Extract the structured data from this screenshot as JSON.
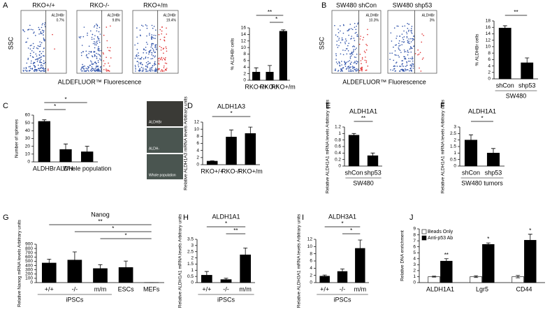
{
  "figure": {
    "panel_letters": [
      "A",
      "B",
      "C",
      "D",
      "E",
      "F",
      "G",
      "H",
      "I",
      "J"
    ],
    "flow_groups": [
      {
        "ylabel": "SSC",
        "xlabel": "ALDEFLUOR™ Fluorescence",
        "plots": [
          {
            "title": "RKO+/+",
            "gate": "ALDHBr",
            "percent": "0.7%"
          },
          {
            "title": "RKO-/-",
            "gate": "ALDHBr",
            "percent": "9.8%"
          },
          {
            "title": "RKO+/m",
            "gate": "ALDHBr",
            "percent": "19.4%"
          }
        ]
      },
      {
        "ylabel": "SSC",
        "xlabel": "ALDEFLUOR™ Fluorescence",
        "plots": [
          {
            "title": "SW480 shCon",
            "gate": "ALDHBr",
            "percent": "10.3%"
          },
          {
            "title": "SW480 shp53",
            "gate": "ALDHBr",
            "percent": "3%"
          }
        ]
      }
    ],
    "photos": [
      "ALDHBr",
      "ALDH-",
      "Whole population"
    ]
  },
  "chart_data": [
    {
      "type": "bar",
      "ylabel": "% ALDHBr cells",
      "categories": [
        "RKO+/+",
        "RKO-/-",
        "RKO+/m"
      ],
      "values": [
        2.5,
        2.5,
        15
      ],
      "errors": [
        1.3,
        2,
        0.4
      ],
      "color": "#000000",
      "ylim": [
        0,
        16
      ],
      "yticks": [
        0,
        2,
        4,
        6,
        8,
        10,
        12,
        14,
        16
      ],
      "brackets": [
        {
          "label": "**",
          "span": [
            0,
            2
          ]
        },
        {
          "label": "*",
          "span": [
            1,
            2
          ]
        }
      ]
    },
    {
      "type": "bar",
      "ylabel": "% ALDHBr cells",
      "categories": [
        "shCon",
        "shp53"
      ],
      "values": [
        15.8,
        5
      ],
      "errors": [
        0.7,
        1.5
      ],
      "color": "#000000",
      "ylim": [
        0,
        18
      ],
      "yticks": [
        0,
        2,
        4,
        6,
        8,
        10,
        12,
        14,
        16,
        18
      ],
      "brackets": [
        {
          "label": "**",
          "span": [
            0,
            1
          ]
        }
      ],
      "group": {
        "label": "SW480",
        "span": [
          0,
          1
        ]
      }
    },
    {
      "type": "bar",
      "ylabel": "Number of spheres",
      "categories": [
        "ALDHBr",
        "ALDH-",
        "Whole population"
      ],
      "values": [
        52,
        16,
        13
      ],
      "errors": [
        2,
        7,
        7
      ],
      "color": "#000000",
      "ylim": [
        0,
        60
      ],
      "yticks": [
        0,
        10,
        20,
        30,
        40,
        50,
        60
      ],
      "brackets": [
        {
          "label": "*",
          "span": [
            0,
            2
          ]
        },
        {
          "label": "*",
          "span": [
            0,
            1
          ]
        }
      ]
    },
    {
      "type": "bar",
      "title": "ALDH1A3",
      "ylabel": "Relative ALDH1A3 mRNA levels Arbitrary units",
      "categories": [
        "RKO+/+",
        "RKO-/-",
        "RKO+/m"
      ],
      "values": [
        1,
        7.8,
        8.8
      ],
      "errors": [
        0.1,
        2,
        1.8
      ],
      "color": "#000000",
      "ylim": [
        0,
        12
      ],
      "yticks": [
        0,
        2,
        4,
        6,
        8,
        10,
        12
      ],
      "brackets": [
        {
          "label": "*",
          "span": [
            0,
            2
          ]
        }
      ]
    },
    {
      "type": "bar",
      "title": "ALDH1A1",
      "ylabel": "Relative ALDH1A1 mRNA levels Arbitrary units",
      "categories": [
        "shCon",
        "shp53"
      ],
      "values": [
        0.95,
        0.32
      ],
      "errors": [
        0.05,
        0.08
      ],
      "color": "#000000",
      "ylim": [
        0,
        1.2
      ],
      "yticks": [
        0,
        0.2,
        0.4,
        0.6,
        0.8,
        1,
        1.2
      ],
      "brackets": [
        {
          "label": "**",
          "span": [
            0,
            1
          ]
        }
      ],
      "group": {
        "label": "SW480",
        "span": [
          0,
          1
        ]
      }
    },
    {
      "type": "bar",
      "title": "ALDH1A1",
      "ylabel": "Relative ALDH1A1 mRNA levels Arbitrary units",
      "categories": [
        "shCon",
        "shp53"
      ],
      "values": [
        2,
        1
      ],
      "errors": [
        0.4,
        0.35
      ],
      "color": "#000000",
      "ylim": [
        0,
        3
      ],
      "yticks": [
        0,
        0.5,
        1,
        1.5,
        2,
        2.5,
        3
      ],
      "brackets": [
        {
          "label": "*",
          "span": [
            0,
            1
          ]
        }
      ],
      "group": {
        "label": "SW480 tumors",
        "span": [
          0,
          1
        ]
      }
    },
    {
      "type": "bar",
      "title": "Nanog",
      "ylabel": "Relative Nanog mRNA levels Arbitrary units",
      "categories": [
        "+/+",
        "-/-",
        "m/m",
        "ESCs",
        "MEFs"
      ],
      "values": [
        460,
        530,
        330,
        355,
        2
      ],
      "errors": [
        90,
        190,
        90,
        150,
        0
      ],
      "color": "#000000",
      "ylim": [
        0,
        900
      ],
      "yticks": [
        0,
        100,
        200,
        300,
        400,
        500,
        600,
        700,
        800,
        900
      ],
      "brackets": [
        {
          "label": "**",
          "span": [
            0,
            4
          ]
        },
        {
          "label": "*",
          "span": [
            1,
            4
          ]
        },
        {
          "label": "*",
          "span": [
            2,
            4
          ]
        }
      ],
      "group": {
        "label": "iPSCs",
        "span": [
          0,
          2
        ]
      }
    },
    {
      "type": "bar",
      "title": "ALDH1A1",
      "ylabel": "Relative ALDH1A1 mRNA levels Arbitrary units",
      "categories": [
        "+/+",
        "-/-",
        "m/m"
      ],
      "values": [
        0.6,
        0.25,
        2.25
      ],
      "errors": [
        0.3,
        0.1,
        0.55
      ],
      "color": "#000000",
      "ylim": [
        0,
        3.5
      ],
      "yticks": [
        0,
        0.5,
        1,
        1.5,
        2,
        2.5,
        3,
        3.5
      ],
      "brackets": [
        {
          "label": "*",
          "span": [
            0,
            2
          ]
        },
        {
          "label": "**",
          "span": [
            1,
            2
          ]
        }
      ],
      "group": {
        "label": "iPSCs",
        "span": [
          0,
          2
        ]
      }
    },
    {
      "type": "bar",
      "title": "ALDH3A1",
      "ylabel": "Relative ALDH3A1 mRNA levels Arbitrary units",
      "categories": [
        "+/+",
        "-/-",
        "m/m"
      ],
      "values": [
        1.8,
        3.1,
        9.5
      ],
      "errors": [
        0.3,
        0.7,
        2.3
      ],
      "color": "#000000",
      "ylim": [
        0,
        12
      ],
      "yticks": [
        0,
        2,
        4,
        6,
        8,
        10,
        12
      ],
      "brackets": [
        {
          "label": "*",
          "span": [
            0,
            2
          ]
        },
        {
          "label": "*",
          "span": [
            1,
            2
          ]
        }
      ],
      "group": {
        "label": "iPSCs",
        "span": [
          0,
          2
        ]
      }
    },
    {
      "type": "grouped_bar",
      "ylabel": "Relative DNA enrichment",
      "categories": [
        "ALDH1A1",
        "Lgr5",
        "CD44"
      ],
      "series": [
        {
          "name": "Beads Only",
          "color": "#ffffff",
          "values": [
            1,
            1,
            1
          ],
          "errors": [
            0.08,
            0.15,
            0.2
          ]
        },
        {
          "name": "Anti-p53 Ab",
          "color": "#000000",
          "values": [
            3.6,
            6.4,
            7.1
          ],
          "errors": [
            0.4,
            0.25,
            1
          ],
          "annotations": [
            "**",
            "*",
            "*"
          ]
        }
      ],
      "ylim": [
        0,
        9
      ],
      "yticks": [
        0,
        1,
        2,
        3,
        4,
        5,
        6,
        7,
        8,
        9
      ],
      "legend": "upper left"
    }
  ]
}
